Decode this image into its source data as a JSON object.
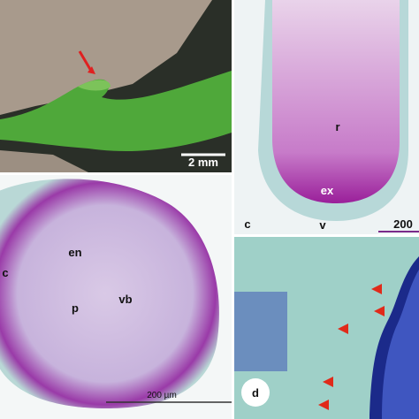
{
  "panel_a": {
    "scale_bar": "2 mm"
  },
  "panel_c": {
    "letter": "c",
    "scale_bar": "200",
    "labels": [
      "r",
      "ex",
      "v"
    ]
  },
  "panel_b": {
    "labels": [
      "c",
      "en",
      "p",
      "vb"
    ],
    "scale_bar": "200 µm"
  },
  "panel_d": {
    "letter": "d"
  }
}
